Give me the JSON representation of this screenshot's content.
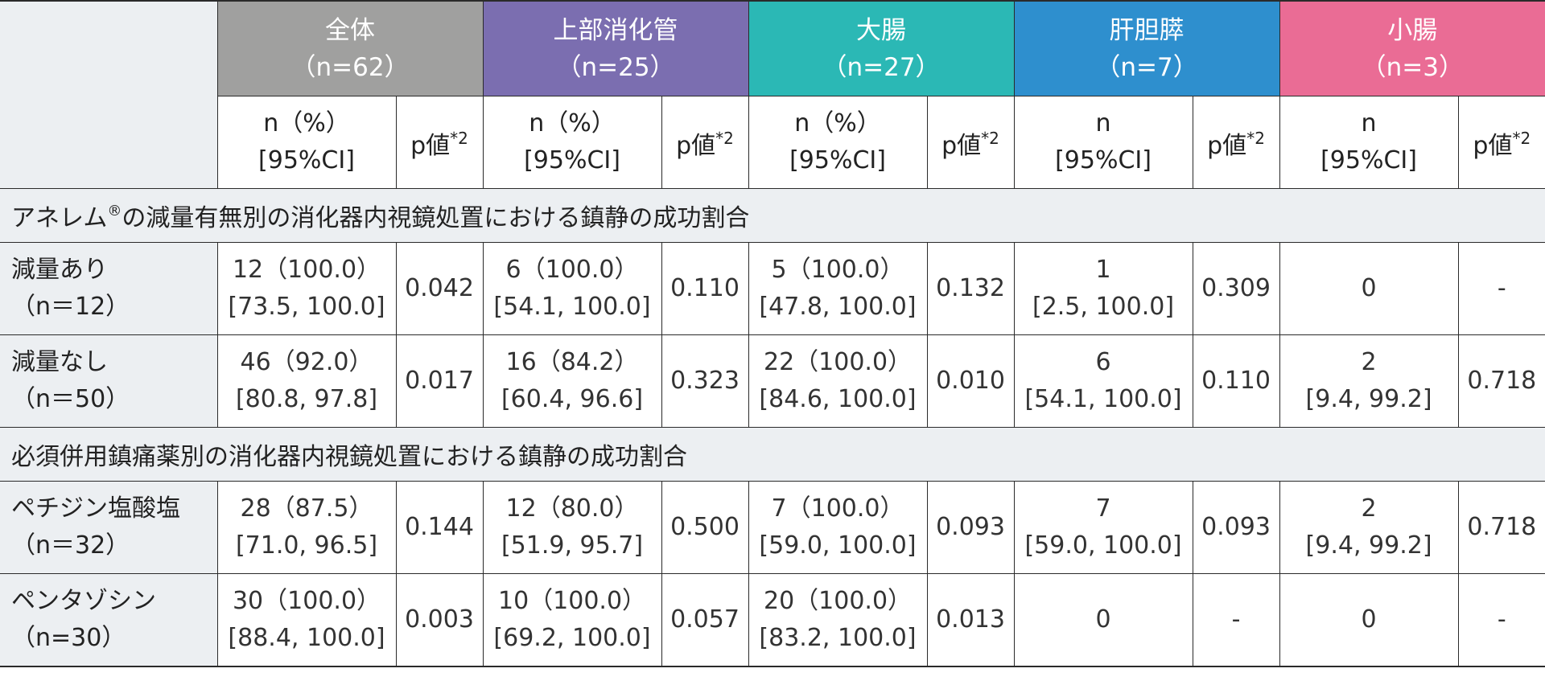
{
  "groups": [
    {
      "name": "全体",
      "n": "（n=62）",
      "color": "#a0a09f"
    },
    {
      "name": "上部消化管",
      "n": "（n=25）",
      "color": "#7b6eb0"
    },
    {
      "name": "大腸",
      "n": "（n=27）",
      "color": "#2bb8b5"
    },
    {
      "name": "肝胆膵",
      "n": "（n=7）",
      "color": "#2e8fce"
    },
    {
      "name": "小腸",
      "n": "（n=3）",
      "color": "#ea6c95"
    }
  ],
  "subheaders": {
    "npct": "n（%）",
    "n": "n",
    "ci": "[95%CI]",
    "p": "p値",
    "p_sup": "*2"
  },
  "sections": [
    {
      "title": "アネレム",
      "title_sup": "®",
      "title_rest": "の減量有無別の消化器内視鏡処置における鎮静の成功割合",
      "rows": [
        {
          "label1": "減量あり",
          "label2": "（n＝12）",
          "cells": [
            {
              "v": "12（100.0）",
              "ci": "[73.5, 100.0]",
              "p": "0.042"
            },
            {
              "v": "6（100.0）",
              "ci": "[54.1, 100.0]",
              "p": "0.110"
            },
            {
              "v": "5（100.0）",
              "ci": "[47.8, 100.0]",
              "p": "0.132"
            },
            {
              "v": "1",
              "ci": "[2.5, 100.0]",
              "p": "0.309"
            },
            {
              "v": "0",
              "ci": "",
              "p": "-"
            }
          ]
        },
        {
          "label1": "減量なし",
          "label2": "（n＝50）",
          "cells": [
            {
              "v": "46（92.0）",
              "ci": "[80.8, 97.8]",
              "p": "0.017"
            },
            {
              "v": "16（84.2）",
              "ci": "[60.4, 96.6]",
              "p": "0.323"
            },
            {
              "v": "22（100.0）",
              "ci": "[84.6, 100.0]",
              "p": "0.010"
            },
            {
              "v": "6",
              "ci": "[54.1, 100.0]",
              "p": "0.110"
            },
            {
              "v": "2",
              "ci": "[9.4, 99.2]",
              "p": "0.718"
            }
          ]
        }
      ]
    },
    {
      "title": "必須併用鎮痛薬別の消化器内視鏡処置における鎮静の成功割合",
      "title_sup": "",
      "title_rest": "",
      "rows": [
        {
          "label1": "ペチジン塩酸塩",
          "label2": "（n＝32）",
          "cells": [
            {
              "v": "28（87.5）",
              "ci": "[71.0, 96.5]",
              "p": "0.144"
            },
            {
              "v": "12（80.0）",
              "ci": "[51.9, 95.7]",
              "p": "0.500"
            },
            {
              "v": "7（100.0）",
              "ci": "[59.0, 100.0]",
              "p": "0.093"
            },
            {
              "v": "7",
              "ci": "[59.0, 100.0]",
              "p": "0.093"
            },
            {
              "v": "2",
              "ci": "[9.4, 99.2]",
              "p": "0.718"
            }
          ]
        },
        {
          "label1": "ペンタゾシン",
          "label2": "（n=30）",
          "cells": [
            {
              "v": "30（100.0）",
              "ci": "[88.4, 100.0]",
              "p": "0.003"
            },
            {
              "v": "10（100.0）",
              "ci": "[69.2, 100.0]",
              "p": "0.057"
            },
            {
              "v": "20（100.0）",
              "ci": "[83.2, 100.0]",
              "p": "0.013"
            },
            {
              "v": "0",
              "ci": "",
              "p": "-"
            },
            {
              "v": "0",
              "ci": "",
              "p": "-"
            }
          ]
        }
      ]
    }
  ]
}
